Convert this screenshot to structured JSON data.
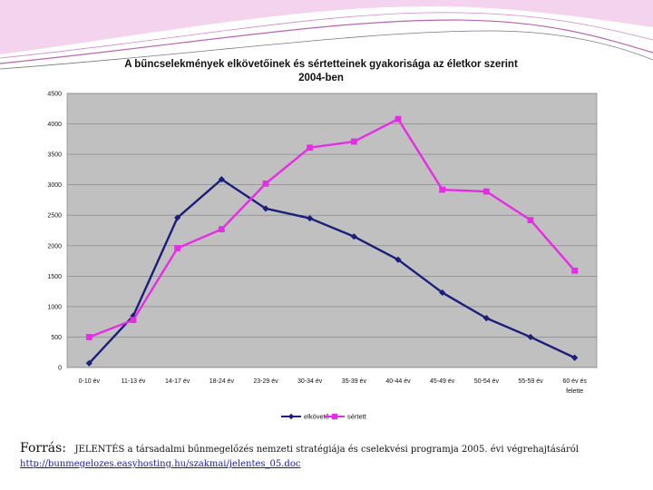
{
  "chart_data": {
    "type": "line",
    "title": "A bűncselekmények elkövetőinek és sértetteinek gyakorisága az életkor szerint",
    "subtitle": "2004-ben",
    "categories": [
      "0-10 év",
      "11-13 év",
      "14-17 év",
      "18-24 év",
      "23-29 év",
      "30-34 év",
      "35-39 év",
      "40-44 év",
      "45-49 év",
      "50-54 év",
      "55-59 év",
      "60 év és felette"
    ],
    "series": [
      {
        "name": "elkövető",
        "color": "#1b1f7a",
        "marker": "diamond",
        "values": [
          70,
          850,
          2460,
          3090,
          2610,
          2450,
          2150,
          1770,
          1230,
          810,
          500,
          160
        ]
      },
      {
        "name": "sértett",
        "color": "#e62de6",
        "marker": "square",
        "values": [
          500,
          780,
          1960,
          2270,
          3020,
          3610,
          3710,
          4080,
          2920,
          2890,
          2420,
          1590
        ]
      }
    ],
    "ylim": [
      0,
      4500
    ],
    "yticks": [
      0,
      500,
      1000,
      1500,
      2000,
      2500,
      3000,
      3500,
      4000,
      4500
    ],
    "grid": true,
    "plot_background": "#c0c0c0",
    "legend": "bottom"
  },
  "source": {
    "label": "Forrás:",
    "text": "JELENTÉS a társadalmi bűnmegelőzés nemzeti stratégiája és cselekvési programja 2005. évi végrehajtásáról",
    "link": "http://bunmegelozes.easyhosting.hu/szakmai/jelentes_05.doc"
  }
}
